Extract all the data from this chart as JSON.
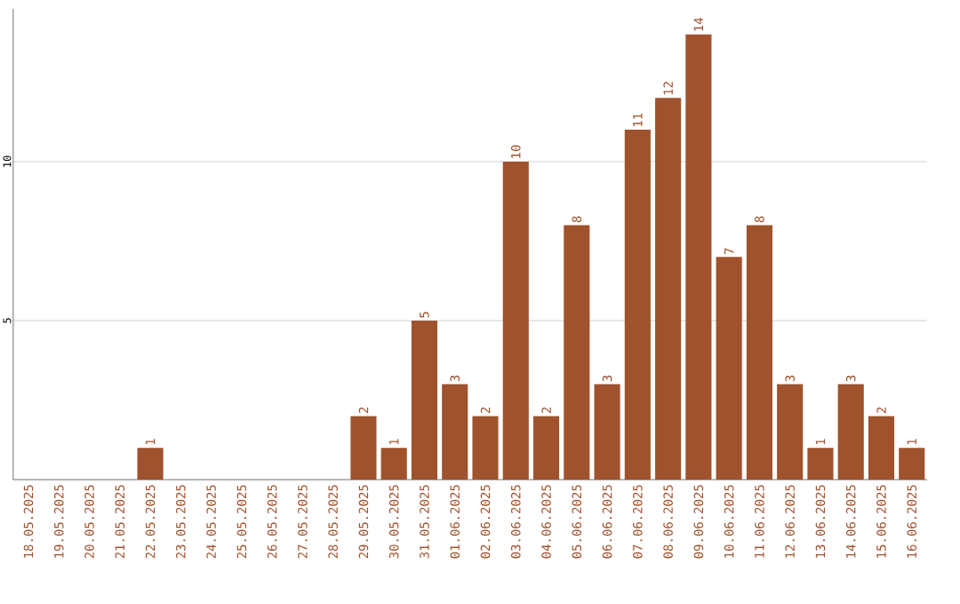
{
  "chart_data": {
    "type": "bar",
    "categories": [
      "18.05.2025",
      "19.05.2025",
      "20.05.2025",
      "21.05.2025",
      "22.05.2025",
      "23.05.2025",
      "24.05.2025",
      "25.05.2025",
      "26.05.2025",
      "27.05.2025",
      "28.05.2025",
      "29.05.2025",
      "30.05.2025",
      "31.05.2025",
      "01.06.2025",
      "02.06.2025",
      "03.06.2025",
      "04.06.2025",
      "05.06.2025",
      "06.06.2025",
      "07.06.2025",
      "08.06.2025",
      "09.06.2025",
      "10.06.2025",
      "11.06.2025",
      "12.06.2025",
      "13.06.2025",
      "14.06.2025",
      "15.06.2025",
      "16.06.2025"
    ],
    "values": [
      0,
      0,
      0,
      0,
      1,
      0,
      0,
      0,
      0,
      0,
      0,
      2,
      1,
      5,
      3,
      2,
      10,
      2,
      8,
      3,
      11,
      12,
      14,
      7,
      8,
      3,
      1,
      3,
      2,
      1
    ],
    "value_labels": [
      null,
      null,
      null,
      null,
      "1",
      null,
      null,
      null,
      null,
      null,
      null,
      "2",
      "1",
      "5",
      "3",
      "2",
      "10",
      "2",
      "8",
      "3",
      "11",
      "12",
      "14",
      "7",
      "8",
      "3",
      "1",
      "3",
      "2",
      "1"
    ],
    "color": "#a0522d",
    "ylim": [
      0,
      14.8
    ],
    "yticks": [
      5,
      10
    ],
    "grid": "y"
  }
}
